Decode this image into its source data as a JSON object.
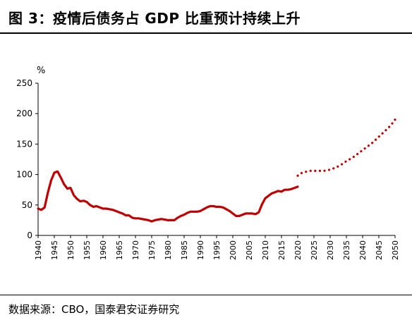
{
  "figure": {
    "title": "图 3：疫情后债务占 GDP 比重预计持续上升",
    "source": "数据来源：CBO，国泰君安证券研究"
  },
  "chart_data": {
    "type": "line",
    "title": "图 3：疫情后债务占 GDP 比重预计持续上升",
    "xlabel": "",
    "ylabel": "%",
    "xlim": [
      1940,
      2050
    ],
    "ylim": [
      0,
      250
    ],
    "yticks": [
      0,
      50,
      100,
      150,
      200,
      250
    ],
    "xticks": [
      1940,
      1945,
      1950,
      1955,
      1960,
      1965,
      1970,
      1975,
      1980,
      1985,
      1990,
      1995,
      2000,
      2005,
      2010,
      2015,
      2020,
      2025,
      2030,
      2035,
      2040,
      2045,
      2050
    ],
    "grid": false,
    "legend": "none",
    "colors": {
      "line": "#c00000"
    },
    "series": [
      {
        "style": "solid",
        "x": [
          1940,
          1941,
          1942,
          1943,
          1944,
          1945,
          1946,
          1947,
          1948,
          1949,
          1950,
          1951,
          1952,
          1953,
          1954,
          1955,
          1956,
          1957,
          1958,
          1959,
          1960,
          1961,
          1962,
          1963,
          1964,
          1965,
          1966,
          1967,
          1968,
          1969,
          1970,
          1971,
          1972,
          1973,
          1974,
          1975,
          1976,
          1977,
          1978,
          1979,
          1980,
          1981,
          1982,
          1983,
          1984,
          1985,
          1986,
          1987,
          1988,
          1989,
          1990,
          1991,
          1992,
          1993,
          1994,
          1995,
          1996,
          1997,
          1998,
          1999,
          2000,
          2001,
          2002,
          2003,
          2004,
          2005,
          2006,
          2007,
          2008,
          2009,
          2010,
          2011,
          2012,
          2013,
          2014,
          2015,
          2016,
          2017,
          2018,
          2019,
          2020
        ],
        "values": [
          44,
          42,
          46,
          70,
          90,
          103,
          105,
          95,
          84,
          77,
          78,
          66,
          60,
          56,
          57,
          55,
          50,
          47,
          48,
          46,
          44,
          44,
          43,
          42,
          40,
          38,
          36,
          33,
          33,
          29,
          28,
          28,
          27,
          26,
          25,
          23,
          25,
          26,
          27,
          26,
          25,
          25,
          25,
          29,
          32,
          34,
          37,
          39,
          39,
          39,
          40,
          43,
          46,
          48,
          48,
          47,
          47,
          46,
          43,
          40,
          36,
          32,
          32,
          34,
          36,
          36,
          36,
          35,
          38,
          51,
          61,
          65,
          69,
          71,
          73,
          72,
          75,
          75,
          76,
          78,
          80
        ]
      },
      {
        "style": "dotted",
        "x": [
          2020,
          2021,
          2022,
          2023,
          2024,
          2025,
          2026,
          2027,
          2028,
          2029,
          2030,
          2031,
          2032,
          2033,
          2034,
          2035,
          2036,
          2037,
          2038,
          2039,
          2040,
          2041,
          2042,
          2043,
          2044,
          2045,
          2046,
          2047,
          2048,
          2049,
          2050
        ],
        "values": [
          98,
          102,
          104,
          105,
          106,
          106,
          106,
          106,
          106,
          107,
          108,
          110,
          112,
          115,
          118,
          122,
          125,
          128,
          132,
          136,
          140,
          144,
          148,
          152,
          157,
          162,
          167,
          172,
          177,
          183,
          190
        ]
      }
    ]
  }
}
